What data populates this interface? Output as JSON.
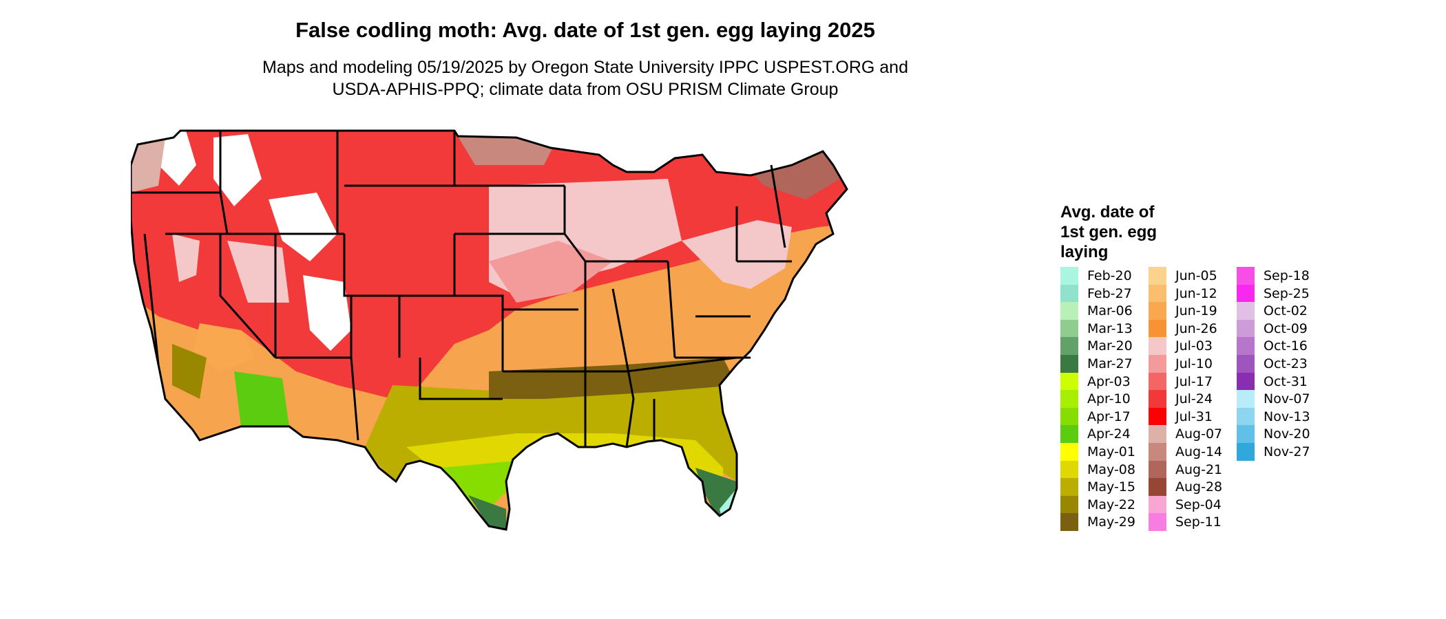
{
  "title": "False codling moth: Avg. date of 1st gen. egg laying 2025",
  "subtitle": {
    "line1": "Maps and modeling 05/19/2025 by Oregon State University IPPC USPEST.ORG and",
    "line2": "USDA-APHIS-PPQ; climate data from OSU PRISM Climate Group"
  },
  "legend": {
    "title_lines": [
      "Avg. date of",
      "1st gen. egg",
      "laying"
    ],
    "columns": [
      [
        {
          "label": "Feb-20",
          "color": "#a8f5e0"
        },
        {
          "label": "Feb-27",
          "color": "#8fe3cd"
        },
        {
          "label": "Mar-06",
          "color": "#b8f0b8"
        },
        {
          "label": "Mar-13",
          "color": "#8fcc8f"
        },
        {
          "label": "Mar-20",
          "color": "#62a26a"
        },
        {
          "label": "Mar-27",
          "color": "#3a7a42"
        },
        {
          "label": "Apr-03",
          "color": "#ccff00"
        },
        {
          "label": "Apr-10",
          "color": "#a8ee00"
        },
        {
          "label": "Apr-17",
          "color": "#88dd00"
        },
        {
          "label": "Apr-24",
          "color": "#5ccc10"
        },
        {
          "label": "May-01",
          "color": "#ffff00"
        },
        {
          "label": "May-08",
          "color": "#e0d800"
        },
        {
          "label": "May-15",
          "color": "#bcae00"
        },
        {
          "label": "May-22",
          "color": "#9a8700"
        },
        {
          "label": "May-29",
          "color": "#7a6010"
        }
      ],
      [
        {
          "label": "Jun-05",
          "color": "#fcd38c"
        },
        {
          "label": "Jun-12",
          "color": "#fbbe6e"
        },
        {
          "label": "Jun-19",
          "color": "#f9a850"
        },
        {
          "label": "Jun-26",
          "color": "#f79334"
        },
        {
          "label": "Jul-03",
          "color": "#f4c8c8"
        },
        {
          "label": "Jul-10",
          "color": "#f39a9a"
        },
        {
          "label": "Jul-17",
          "color": "#f26666"
        },
        {
          "label": "Jul-24",
          "color": "#f23838"
        },
        {
          "label": "Jul-31",
          "color": "#ff0000"
        },
        {
          "label": "Aug-07",
          "color": "#ddb0a8"
        },
        {
          "label": "Aug-14",
          "color": "#c8887e"
        },
        {
          "label": "Aug-21",
          "color": "#b0665a"
        },
        {
          "label": "Aug-28",
          "color": "#984634"
        },
        {
          "label": "Sep-04",
          "color": "#f9a6d4"
        },
        {
          "label": "Sep-11",
          "color": "#f77ee0"
        }
      ],
      [
        {
          "label": "Sep-18",
          "color": "#f84ee8"
        },
        {
          "label": "Sep-25",
          "color": "#f828f0"
        },
        {
          "label": "Oct-02",
          "color": "#e0c0e4"
        },
        {
          "label": "Oct-09",
          "color": "#cc9bd8"
        },
        {
          "label": "Oct-16",
          "color": "#b676cb"
        },
        {
          "label": "Oct-23",
          "color": "#a054be"
        },
        {
          "label": "Oct-31",
          "color": "#8a2eb0"
        },
        {
          "label": "Nov-07",
          "color": "#b8ecf8"
        },
        {
          "label": "Nov-13",
          "color": "#8ed6f0"
        },
        {
          "label": "Nov-20",
          "color": "#60c0e8"
        },
        {
          "label": "Nov-27",
          "color": "#30a8dc"
        }
      ]
    ]
  }
}
